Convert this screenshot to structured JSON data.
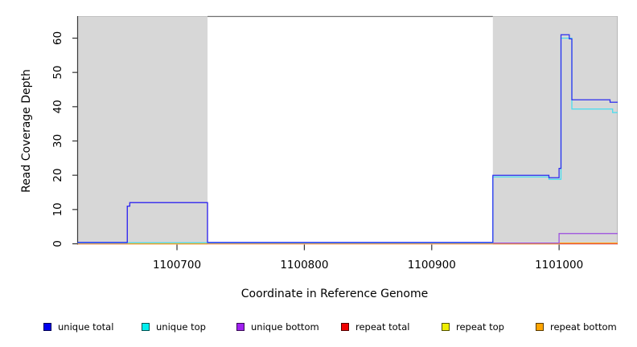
{
  "chart_data": {
    "type": "line",
    "subtype": "step",
    "title": "",
    "xlabel": "Coordinate in Reference Genome",
    "ylabel": "Read Coverage Depth",
    "xlim": [
      1100622,
      1101046
    ],
    "ylim": [
      0,
      66.4
    ],
    "x_ticks": [
      1100700,
      1100800,
      1100900,
      1101000
    ],
    "y_ticks": [
      0,
      10,
      20,
      30,
      40,
      50,
      60
    ],
    "grid": false,
    "legend_position": "bottom",
    "plot_bg": "#ffffff",
    "shade_color": "#d7d7d7",
    "frame_color": "#6f6f6f",
    "axis_color": "#333333",
    "shaded_regions": [
      {
        "from": 1100622,
        "to": 1100724
      },
      {
        "from": 1100948,
        "to": 1101046
      }
    ],
    "series": [
      {
        "name": "repeat-top",
        "label": "repeat top",
        "color": "#EEEE00",
        "line_color": "#E6E65A",
        "points": [
          [
            1100622,
            0
          ],
          [
            1101046,
            0
          ]
        ]
      },
      {
        "name": "repeat-total",
        "label": "repeat total",
        "color": "#EE0000",
        "line_color": "#DC3A5C",
        "points": [
          [
            1100622,
            0
          ],
          [
            1101046,
            0
          ]
        ]
      },
      {
        "name": "repeat-bottom",
        "label": "repeat bottom",
        "color": "#FFA500",
        "line_color": "#FFA513",
        "points": [
          [
            1100622,
            0
          ],
          [
            1101000,
            0
          ],
          [
            1101000,
            0.2
          ],
          [
            1101046,
            0.2
          ]
        ]
      },
      {
        "name": "unique-bottom",
        "label": "unique bottom",
        "color": "#A020F0",
        "line_color": "#9B4BE0",
        "points": [
          [
            1100622,
            0
          ],
          [
            1100661,
            0
          ],
          [
            1100661,
            11
          ],
          [
            1100663,
            11
          ],
          [
            1100663,
            12
          ],
          [
            1100724,
            12
          ],
          [
            1100724,
            0
          ],
          [
            1101000,
            0
          ],
          [
            1101000,
            3
          ],
          [
            1101046,
            3
          ]
        ]
      },
      {
        "name": "unique-top",
        "label": "unique top",
        "color": "#00EEEE",
        "line_color": "#45DDEF",
        "points": [
          [
            1100622,
            0
          ],
          [
            1100948,
            0
          ],
          [
            1100948,
            19.5
          ],
          [
            1100992,
            19.5
          ],
          [
            1100992,
            18.8
          ],
          [
            1101001.5,
            18.8
          ],
          [
            1101001.5,
            60
          ],
          [
            1101010,
            60
          ],
          [
            1101010,
            39.3
          ],
          [
            1101042,
            39.3
          ],
          [
            1101042,
            38.3
          ],
          [
            1101046,
            38.3
          ]
        ]
      },
      {
        "name": "unique-total",
        "label": "unique total",
        "color": "#0000EE",
        "line_color": "#2B2BEF",
        "points": [
          [
            1100622,
            0
          ],
          [
            1100661,
            0
          ],
          [
            1100661,
            11
          ],
          [
            1100663,
            11
          ],
          [
            1100663,
            12
          ],
          [
            1100724,
            12
          ],
          [
            1100724,
            0
          ],
          [
            1100948,
            0
          ],
          [
            1100948,
            20
          ],
          [
            1100992,
            20
          ],
          [
            1100992,
            19.3
          ],
          [
            1101000,
            19.3
          ],
          [
            1101000,
            22
          ],
          [
            1101001.5,
            22
          ],
          [
            1101001.5,
            61
          ],
          [
            1101008,
            61
          ],
          [
            1101008,
            59.8
          ],
          [
            1101010,
            59.8
          ],
          [
            1101010,
            42
          ],
          [
            1101040,
            42
          ],
          [
            1101040,
            41.3
          ],
          [
            1101046,
            41.3
          ]
        ]
      }
    ],
    "legend_order": [
      "unique-total",
      "unique-top",
      "unique-bottom",
      "repeat-total",
      "repeat-top",
      "repeat-bottom"
    ]
  }
}
